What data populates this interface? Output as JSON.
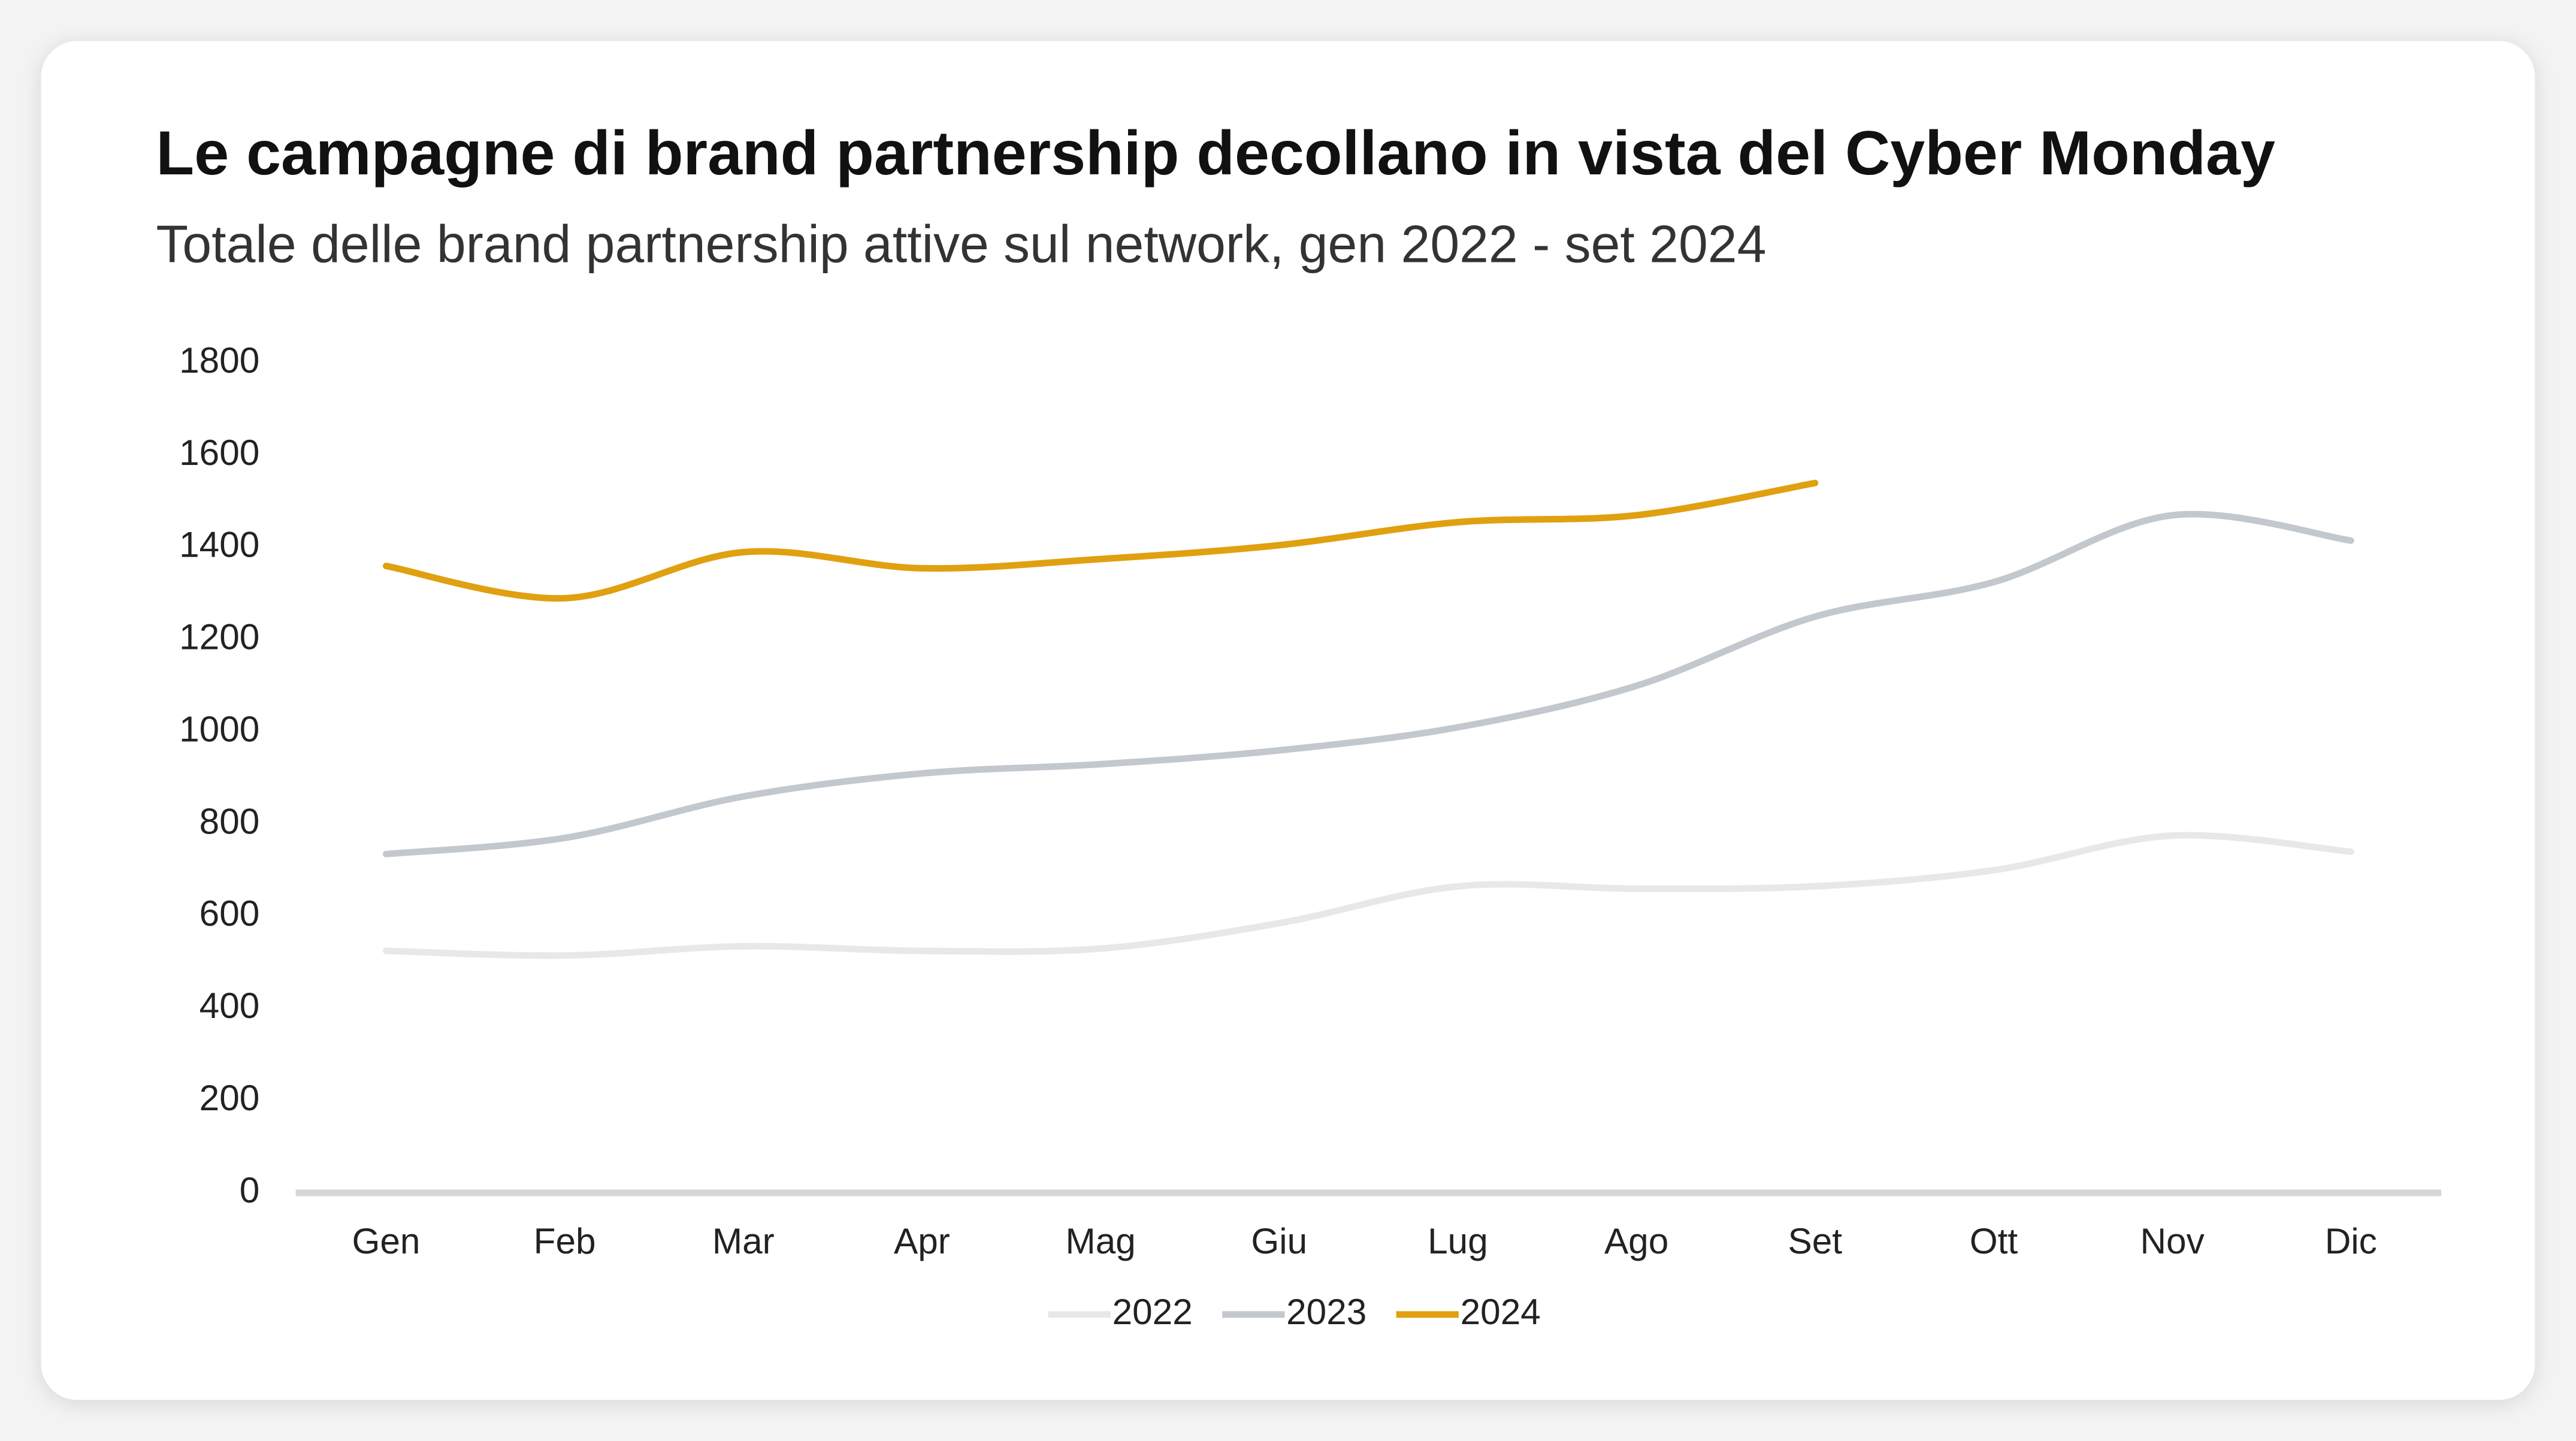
{
  "chart_data": {
    "type": "line",
    "title": "Le campagne di brand partnership decollano in vista del Cyber Monday",
    "subtitle": "Totale delle brand partnership attive sul network, gen 2022 - set 2024",
    "categories": [
      "Gen",
      "Feb",
      "Mar",
      "Apr",
      "Mag",
      "Giu",
      "Lug",
      "Ago",
      "Set",
      "Ott",
      "Nov",
      "Dic"
    ],
    "series": [
      {
        "name": "2022",
        "color": "#e8e8e8",
        "values": [
          525,
          515,
          535,
          525,
          530,
          585,
          665,
          660,
          665,
          700,
          775,
          740
        ]
      },
      {
        "name": "2023",
        "color": "#c3c8ce",
        "values": [
          735,
          770,
          860,
          910,
          930,
          960,
          1010,
          1100,
          1250,
          1325,
          1470,
          1415
        ]
      },
      {
        "name": "2024",
        "color": "#e0a010",
        "values": [
          1360,
          1290,
          1390,
          1355,
          1375,
          1405,
          1455,
          1470,
          1540,
          null,
          null,
          null
        ]
      }
    ],
    "ylim": [
      0,
      1800
    ],
    "yticks": [
      0,
      200,
      400,
      600,
      800,
      1000,
      1200,
      1400,
      1600,
      1800
    ],
    "grid": false,
    "legend": "bottom"
  }
}
